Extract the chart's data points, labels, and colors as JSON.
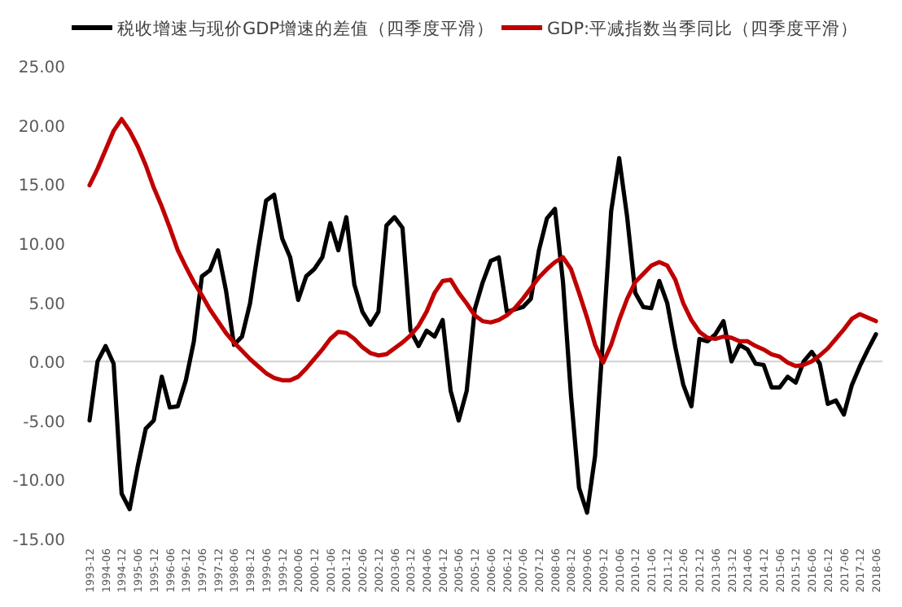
{
  "chart_data": {
    "type": "line",
    "legend": "top",
    "marker": "none",
    "line_style": "solid",
    "categories": [
      "1993-12",
      null,
      "1994-06",
      null,
      "1994-12",
      null,
      "1995-06",
      null,
      "1995-12",
      null,
      "1996-06",
      null,
      "1996-12",
      null,
      "1997-06",
      null,
      "1997-12",
      null,
      "1998-06",
      null,
      "1998-12",
      null,
      "1999-06",
      null,
      "1999-12",
      null,
      "2000-06",
      null,
      "2000-12",
      null,
      "2001-06",
      null,
      "2001-12",
      null,
      "2002-06",
      null,
      "2002-12",
      null,
      "2003-06",
      null,
      "2003-12",
      null,
      "2004-06",
      null,
      "2004-12",
      null,
      "2005-06",
      null,
      "2005-12",
      null,
      "2006-06",
      null,
      "2006-12",
      null,
      "2007-06",
      null,
      "2007-12",
      null,
      "2008-06",
      null,
      "2008-12",
      null,
      "2009-06",
      null,
      "2009-12",
      null,
      "2010-06",
      null,
      "2010-12",
      null,
      "2011-06",
      null,
      "2011-12",
      null,
      "2012-06",
      null,
      "2012-12",
      null,
      "2013-06",
      null,
      "2013-12",
      null,
      "2014-06",
      null,
      "2014-12",
      null,
      "2015-06",
      null,
      "2015-12",
      null,
      "2016-06",
      null,
      "2016-12",
      null,
      "2017-06",
      null,
      "2017-12",
      null,
      "2018-06"
    ],
    "ylim": [
      -15,
      25
    ],
    "yticks": [
      {
        "value": -15,
        "label": "-15.00"
      },
      {
        "value": -10,
        "label": "-10.00"
      },
      {
        "value": -5,
        "label": "-5.00"
      },
      {
        "value": 0,
        "label": "0.00"
      },
      {
        "value": 5,
        "label": "5.00"
      },
      {
        "value": 10,
        "label": "10.00"
      },
      {
        "value": 15,
        "label": "15.00"
      },
      {
        "value": 20,
        "label": "20.00"
      },
      {
        "value": 25,
        "label": "25.00"
      }
    ],
    "series": [
      {
        "name": "税收增速与现价GDP增速的差值（四季度平滑）",
        "color": "#000000",
        "values": [
          -5.0,
          0.0,
          1.3,
          -0.2,
          -11.2,
          -12.5,
          -8.9,
          -5.7,
          -5.0,
          -1.3,
          -3.9,
          -3.8,
          -1.6,
          1.7,
          7.2,
          7.7,
          9.4,
          6.0,
          1.4,
          2.1,
          4.9,
          9.4,
          13.6,
          14.1,
          10.4,
          8.8,
          5.2,
          7.2,
          7.8,
          8.8,
          11.7,
          9.4,
          12.2,
          6.5,
          4.2,
          3.1,
          4.2,
          11.5,
          12.2,
          11.3,
          2.6,
          1.3,
          2.6,
          2.1,
          3.5,
          -2.5,
          -5.0,
          -2.5,
          4.4,
          6.7,
          8.5,
          8.8,
          4.2,
          4.4,
          4.6,
          5.3,
          9.4,
          12.1,
          12.9,
          6.7,
          -2.9,
          -10.7,
          -12.8,
          -8.0,
          2.1,
          12.7,
          17.2,
          12.2,
          5.8,
          4.6,
          4.5,
          6.8,
          4.9,
          1.2,
          -2.0,
          -3.8,
          1.9,
          1.7,
          2.3,
          3.4,
          0.0,
          1.4,
          1.0,
          -0.2,
          -0.3,
          -2.2,
          -2.2,
          -1.3,
          -1.8,
          0.0,
          0.8,
          -0.2,
          -3.6,
          -3.3,
          -4.5,
          -2.0,
          -0.4,
          1.0,
          2.3
        ]
      },
      {
        "name": "GDP:平减指数当季同比（四季度平滑）",
        "color": "#c00000",
        "values": [
          14.9,
          16.3,
          17.9,
          19.5,
          20.5,
          19.5,
          18.2,
          16.6,
          14.7,
          13.1,
          11.3,
          9.4,
          8.0,
          6.7,
          5.6,
          4.4,
          3.4,
          2.4,
          1.6,
          0.9,
          0.2,
          -0.4,
          -1.0,
          -1.4,
          -1.6,
          -1.6,
          -1.3,
          -0.6,
          0.2,
          1.0,
          1.9,
          2.5,
          2.4,
          1.9,
          1.2,
          0.7,
          0.5,
          0.6,
          1.1,
          1.6,
          2.2,
          3.0,
          4.2,
          5.8,
          6.8,
          6.9,
          5.8,
          4.9,
          3.9,
          3.4,
          3.3,
          3.5,
          3.9,
          4.5,
          5.3,
          6.2,
          7.1,
          7.8,
          8.4,
          8.8,
          7.8,
          5.8,
          3.7,
          1.4,
          -0.1,
          1.4,
          3.5,
          5.3,
          6.7,
          7.4,
          8.1,
          8.4,
          8.1,
          6.9,
          4.9,
          3.5,
          2.5,
          2.0,
          1.9,
          2.1,
          2.0,
          1.7,
          1.7,
          1.3,
          1.0,
          0.6,
          0.4,
          -0.1,
          -0.4,
          -0.3,
          0.0,
          0.5,
          1.1,
          1.9,
          2.7,
          3.6,
          4.0,
          3.7,
          3.4
        ]
      }
    ]
  }
}
